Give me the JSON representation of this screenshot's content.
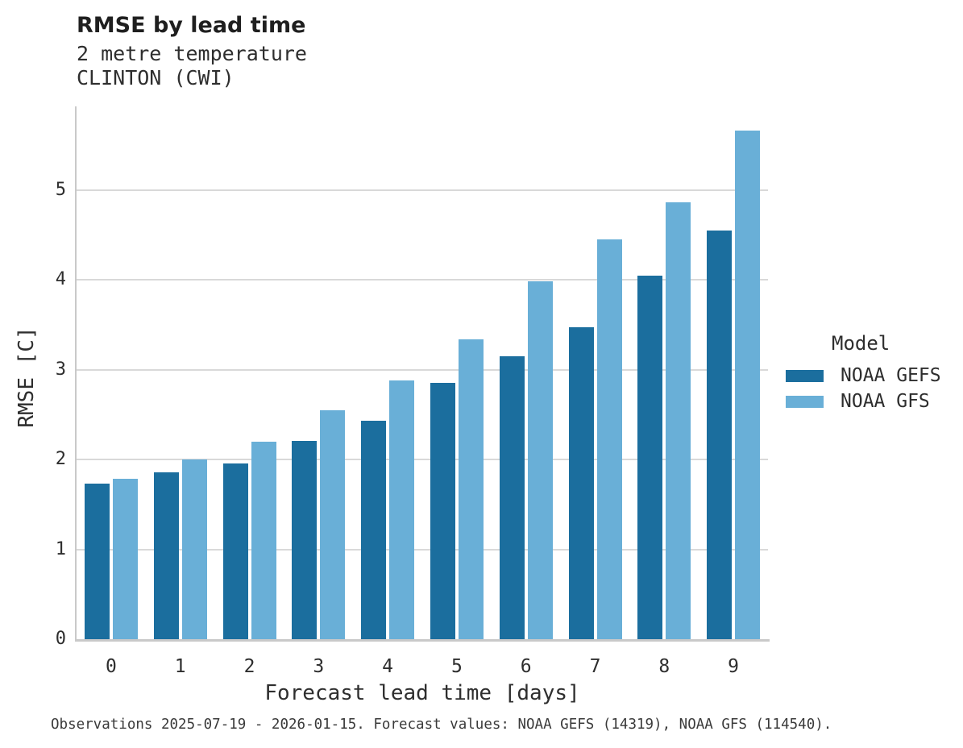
{
  "header": {
    "title": "RMSE by lead time",
    "subtitle_variable": "2 metre temperature",
    "subtitle_station": "CLINTON (CWI)"
  },
  "chart_data": {
    "type": "bar",
    "title": "RMSE by lead time",
    "subtitle": "2 metre temperature — CLINTON (CWI)",
    "xlabel": "Forecast lead time [days]",
    "ylabel": "RMSE [C]",
    "categories": [
      "0",
      "1",
      "2",
      "3",
      "4",
      "5",
      "6",
      "7",
      "8",
      "9"
    ],
    "series": [
      {
        "name": "NOAA GEFS",
        "color": "#1b6e9e",
        "values": [
          1.73,
          1.86,
          1.96,
          2.21,
          2.43,
          2.85,
          3.15,
          3.47,
          4.05,
          4.55
        ]
      },
      {
        "name": "NOAA GFS",
        "color": "#69afd7",
        "values": [
          1.79,
          2.0,
          2.2,
          2.55,
          2.88,
          3.34,
          3.98,
          4.45,
          4.86,
          5.66
        ]
      }
    ],
    "ylim": [
      0,
      5.93
    ],
    "yticks": [
      0,
      1,
      2,
      3,
      4,
      5
    ],
    "grid": "horizontal",
    "legend_title": "Model",
    "legend_position": "right"
  },
  "footer": {
    "note": "Observations 2025-07-19 - 2026-01-15. Forecast values: NOAA GEFS (14319), NOAA GFS (114540)."
  }
}
